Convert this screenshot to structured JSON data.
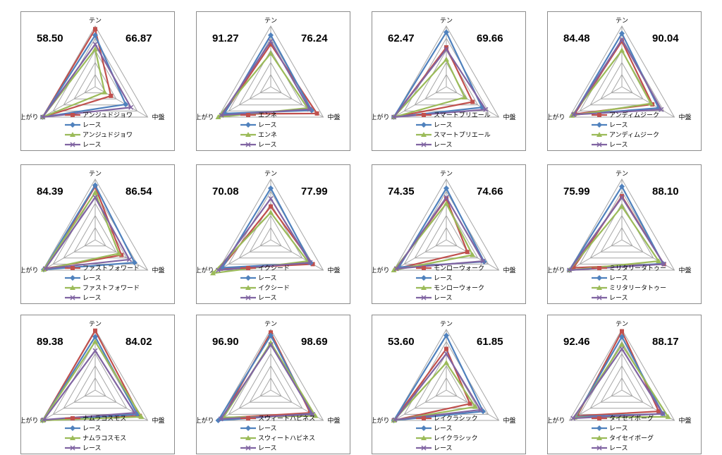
{
  "axes": [
    "テン",
    "中盤",
    "上がり"
  ],
  "colors": {
    "horse_a": "#c0504d",
    "race_a": "#4f81bd",
    "horse_b": "#9bbb59",
    "race_b": "#8064a2",
    "grid": "#a6a6a6"
  },
  "race_label": "レース",
  "chart_data": [
    {
      "type": "radar",
      "horse": "アンジュドジョワ",
      "left_score": "58.50",
      "right_score": "66.87",
      "rmax": 100,
      "categories": [
        "テン",
        "中盤",
        "上がり"
      ],
      "series": [
        {
          "name": "アンジュドジョワ",
          "values": [
            95,
            30,
            100
          ]
        },
        {
          "name": "レース",
          "values": [
            85,
            58,
            100
          ]
        },
        {
          "name": "アンジュドジョワ",
          "values": [
            62,
            18,
            100
          ]
        },
        {
          "name": "レース",
          "values": [
            70,
            68,
            100
          ]
        }
      ]
    },
    {
      "type": "radar",
      "horse": "エンネ",
      "left_score": "91.27",
      "right_score": "76.24",
      "rmax": 100,
      "categories": [
        "テン",
        "中盤",
        "上がり"
      ],
      "series": [
        {
          "name": "エンネ",
          "values": [
            70,
            88,
            90
          ]
        },
        {
          "name": "レース",
          "values": [
            85,
            78,
            88
          ]
        },
        {
          "name": "エンネ",
          "values": [
            55,
            70,
            100
          ]
        },
        {
          "name": "レース",
          "values": [
            75,
            74,
            94
          ]
        }
      ]
    },
    {
      "type": "radar",
      "horse": "スマートプリエール",
      "left_score": "62.47",
      "right_score": "69.66",
      "rmax": 100,
      "categories": [
        "テン",
        "中盤",
        "上がり"
      ],
      "series": [
        {
          "name": "スマートプリエール",
          "values": [
            65,
            50,
            100
          ]
        },
        {
          "name": "レース",
          "values": [
            90,
            68,
            100
          ]
        },
        {
          "name": "スマートプリエール",
          "values": [
            45,
            35,
            100
          ]
        },
        {
          "name": "レース",
          "values": [
            62,
            75,
            100
          ]
        }
      ]
    },
    {
      "type": "radar",
      "horse": "アンディムジーク",
      "left_score": "84.48",
      "right_score": "90.04",
      "rmax": 100,
      "categories": [
        "テン",
        "中盤",
        "上がり"
      ],
      "series": [
        {
          "name": "アンディムジーク",
          "values": [
            75,
            58,
            90
          ]
        },
        {
          "name": "レース",
          "values": [
            88,
            70,
            92
          ]
        },
        {
          "name": "アンディムジーク",
          "values": [
            60,
            55,
            95
          ]
        },
        {
          "name": "レース",
          "values": [
            78,
            75,
            92
          ]
        }
      ]
    },
    {
      "type": "radar",
      "horse": "ファストフォワード",
      "left_score": "84.39",
      "right_score": "86.54",
      "rmax": 100,
      "categories": [
        "テン",
        "中盤",
        "上がり"
      ],
      "series": [
        {
          "name": "ファストフォワード",
          "values": [
            88,
            50,
            95
          ]
        },
        {
          "name": "レース",
          "values": [
            90,
            75,
            98
          ]
        },
        {
          "name": "ファストフォワード",
          "values": [
            78,
            45,
            98
          ]
        },
        {
          "name": "レース",
          "values": [
            70,
            65,
            95
          ]
        }
      ]
    },
    {
      "type": "radar",
      "horse": "イクシード",
      "left_score": "70.08",
      "right_score": "77.99",
      "rmax": 100,
      "categories": [
        "テン",
        "中盤",
        "上がり"
      ],
      "series": [
        {
          "name": "イクシード",
          "values": [
            55,
            80,
            95
          ]
        },
        {
          "name": "レース",
          "values": [
            85,
            76,
            92
          ]
        },
        {
          "name": "イクシード",
          "values": [
            45,
            70,
            110
          ]
        },
        {
          "name": "レース",
          "values": [
            68,
            75,
            100
          ]
        }
      ]
    },
    {
      "type": "radar",
      "horse": "モンローウォーク",
      "left_score": "74.35",
      "right_score": "74.66",
      "rmax": 100,
      "categories": [
        "テン",
        "中盤",
        "上がり"
      ],
      "series": [
        {
          "name": "モンローウォーク",
          "values": [
            68,
            40,
            95
          ]
        },
        {
          "name": "レース",
          "values": [
            85,
            72,
            90
          ]
        },
        {
          "name": "モンローウォーク",
          "values": [
            60,
            50,
            100
          ]
        },
        {
          "name": "レース",
          "values": [
            70,
            70,
            95
          ]
        }
      ]
    },
    {
      "type": "radar",
      "horse": "ミリタリータトゥー",
      "left_score": "75.99",
      "right_score": "88.10",
      "rmax": 100,
      "categories": [
        "テン",
        "中盤",
        "上がり"
      ],
      "series": [
        {
          "name": "ミリタリータトゥー",
          "values": [
            72,
            80,
            92
          ]
        },
        {
          "name": "レース",
          "values": [
            88,
            78,
            100
          ]
        },
        {
          "name": "ミリタリータトゥー",
          "values": [
            55,
            70,
            100
          ]
        },
        {
          "name": "レース",
          "values": [
            70,
            80,
            100
          ]
        }
      ]
    },
    {
      "type": "radar",
      "horse": "ナムラコスモス",
      "left_score": "89.38",
      "right_score": "84.02",
      "rmax": 100,
      "categories": [
        "テン",
        "中盤",
        "上がり"
      ],
      "series": [
        {
          "name": "ナムラコスモス",
          "values": [
            98,
            85,
            100
          ]
        },
        {
          "name": "レース",
          "values": [
            88,
            80,
            100
          ]
        },
        {
          "name": "ナムラコスモス",
          "values": [
            80,
            88,
            100
          ]
        },
        {
          "name": "レース",
          "values": [
            65,
            75,
            98
          ]
        }
      ]
    },
    {
      "type": "radar",
      "horse": "スウィートハピネス",
      "left_score": "96.90",
      "right_score": "98.69",
      "rmax": 100,
      "categories": [
        "テン",
        "中盤",
        "上がり"
      ],
      "series": [
        {
          "name": "スウィートハピネス",
          "values": [
            95,
            75,
            92
          ]
        },
        {
          "name": "レース",
          "values": [
            90,
            78,
            100
          ]
        },
        {
          "name": "スウィートハピネス",
          "values": [
            78,
            85,
            90
          ]
        },
        {
          "name": "レース",
          "values": [
            75,
            80,
            95
          ]
        }
      ]
    },
    {
      "type": "radar",
      "horse": "レイクラシック",
      "left_score": "53.60",
      "right_score": "61.85",
      "rmax": 100,
      "categories": [
        "テン",
        "中盤",
        "上がり"
      ],
      "series": [
        {
          "name": "レイクラシック",
          "values": [
            68,
            45,
            100
          ]
        },
        {
          "name": "レース",
          "values": [
            90,
            70,
            100
          ]
        },
        {
          "name": "レイクラシック",
          "values": [
            45,
            55,
            100
          ]
        },
        {
          "name": "レース",
          "values": [
            60,
            65,
            98
          ]
        }
      ]
    },
    {
      "type": "radar",
      "horse": "タイセイボーグ",
      "left_score": "92.46",
      "right_score": "88.17",
      "rmax": 100,
      "categories": [
        "テン",
        "中盤",
        "上がり"
      ],
      "series": [
        {
          "name": "タイセイボーグ",
          "values": [
            97,
            70,
            85
          ]
        },
        {
          "name": "レース",
          "values": [
            88,
            78,
            88
          ]
        },
        {
          "name": "タイセイボーグ",
          "values": [
            75,
            88,
            90
          ]
        },
        {
          "name": "レース",
          "values": [
            68,
            78,
            93
          ]
        }
      ]
    }
  ]
}
